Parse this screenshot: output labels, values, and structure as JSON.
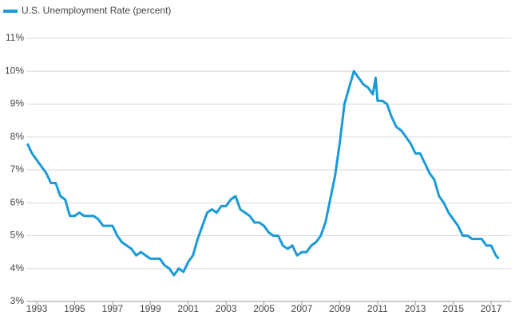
{
  "chart_data": {
    "type": "line",
    "x": [
      1992.5,
      1992.75,
      1993,
      1993.25,
      1993.5,
      1993.75,
      1994,
      1994.25,
      1994.5,
      1994.75,
      1995,
      1995.25,
      1995.5,
      1995.75,
      1996,
      1996.25,
      1996.5,
      1996.75,
      1997,
      1997.25,
      1997.5,
      1997.75,
      1998,
      1998.25,
      1998.5,
      1998.75,
      1999,
      1999.25,
      1999.5,
      1999.75,
      2000,
      2000.25,
      2000.5,
      2000.75,
      2001,
      2001.25,
      2001.5,
      2001.75,
      2002,
      2002.25,
      2002.5,
      2002.75,
      2003,
      2003.25,
      2003.5,
      2003.75,
      2004,
      2004.25,
      2004.5,
      2004.75,
      2005,
      2005.25,
      2005.5,
      2005.75,
      2006,
      2006.25,
      2006.5,
      2006.75,
      2007,
      2007.25,
      2007.5,
      2007.75,
      2008,
      2008.25,
      2008.5,
      2008.75,
      2009,
      2009.25,
      2009.5,
      2009.75,
      2010,
      2010.25,
      2010.5,
      2010.75,
      2010.9,
      2011,
      2011.25,
      2011.5,
      2011.75,
      2012,
      2012.25,
      2012.5,
      2012.75,
      2013,
      2013.25,
      2013.5,
      2013.75,
      2014,
      2014.25,
      2014.5,
      2014.75,
      2015,
      2015.25,
      2015.5,
      2015.75,
      2016,
      2016.25,
      2016.5,
      2016.75,
      2017,
      2017.25,
      2017.4
    ],
    "series": [
      {
        "name": "U.S. Unemployment Rate (percent)",
        "color": "#1a9ad6",
        "values": [
          7.8,
          7.5,
          7.3,
          7.1,
          6.9,
          6.6,
          6.6,
          6.2,
          6.1,
          5.6,
          5.6,
          5.7,
          5.6,
          5.6,
          5.6,
          5.5,
          5.3,
          5.3,
          5.3,
          5.0,
          4.8,
          4.7,
          4.6,
          4.4,
          4.5,
          4.4,
          4.3,
          4.3,
          4.3,
          4.1,
          4.0,
          3.8,
          4.0,
          3.9,
          4.2,
          4.4,
          4.9,
          5.3,
          5.7,
          5.8,
          5.7,
          5.9,
          5.9,
          6.1,
          6.2,
          5.8,
          5.7,
          5.6,
          5.4,
          5.4,
          5.3,
          5.1,
          5.0,
          5.0,
          4.7,
          4.6,
          4.7,
          4.4,
          4.5,
          4.5,
          4.7,
          4.8,
          5.0,
          5.4,
          6.1,
          6.8,
          7.8,
          9.0,
          9.5,
          10.0,
          9.8,
          9.6,
          9.5,
          9.3,
          9.8,
          9.1,
          9.1,
          9.0,
          8.6,
          8.3,
          8.2,
          8.0,
          7.8,
          7.5,
          7.5,
          7.2,
          6.9,
          6.7,
          6.2,
          6.0,
          5.7,
          5.5,
          5.3,
          5.0,
          5.0,
          4.9,
          4.9,
          4.9,
          4.7,
          4.7,
          4.4,
          4.3
        ]
      }
    ],
    "xlim": [
      1992.45,
      2018.05
    ],
    "xticks": [
      1993,
      1995,
      1997,
      1999,
      2001,
      2003,
      2005,
      2007,
      2009,
      2011,
      2013,
      2015,
      2017
    ],
    "ylim": [
      3,
      11
    ],
    "yticks": [
      {
        "value": 3,
        "label": "3%"
      },
      {
        "value": 4,
        "label": "4%"
      },
      {
        "value": 5,
        "label": "5%"
      },
      {
        "value": 6,
        "label": "6%"
      },
      {
        "value": 7,
        "label": "7%"
      },
      {
        "value": 8,
        "label": "8%"
      },
      {
        "value": 9,
        "label": "9%"
      },
      {
        "value": 10,
        "label": "10%"
      },
      {
        "value": 11,
        "label": "11%"
      }
    ],
    "grid": true
  }
}
